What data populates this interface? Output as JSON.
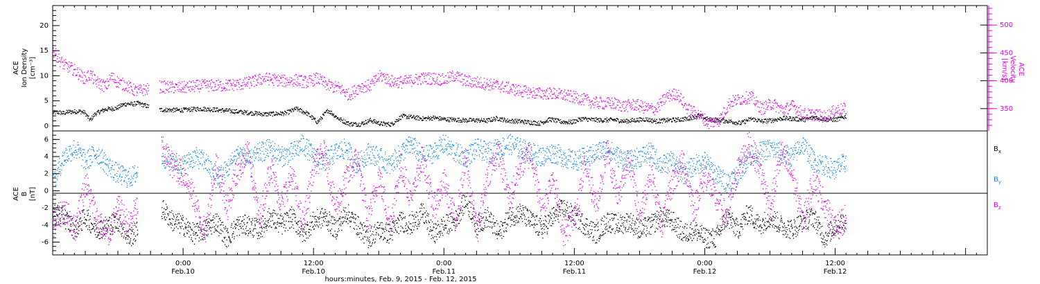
{
  "chart_data": [
    {
      "type": "scatter",
      "panel": "top",
      "left_axis_label": [
        "ACE",
        "Ion Density",
        "[cm⁻³]"
      ],
      "right_axis_label": [
        "ACE",
        "Velocity",
        "[km/s]"
      ],
      "left_ylim": [
        -1,
        24
      ],
      "right_ylim": [
        310,
        535
      ],
      "left_ticks": [
        "0",
        "5",
        "10",
        "15",
        "20"
      ],
      "right_ticks": [
        "350",
        "400",
        "450",
        "500"
      ],
      "series": [
        {
          "role": "ion-density",
          "color": "#000000",
          "x": [
            0,
            1,
            2,
            3,
            4,
            5,
            6,
            7,
            8,
            9,
            10,
            11,
            12,
            13,
            14,
            15,
            16,
            20,
            24,
            28,
            32,
            36,
            40,
            44,
            46,
            48,
            50,
            52,
            54,
            56,
            58,
            60,
            62,
            64,
            66,
            68,
            70,
            72,
            74,
            76,
            78,
            80,
            82,
            84,
            86,
            88,
            90,
            92,
            94,
            96,
            98,
            100,
            102,
            104,
            106,
            108,
            110,
            112,
            114,
            116,
            118,
            120,
            122,
            124,
            126,
            128,
            130,
            132,
            134,
            136,
            138,
            140,
            142,
            144,
            146,
            148,
            150
          ],
          "y": [
            2.7,
            2.8,
            2.6,
            2.9,
            2.9,
            3.0,
            2.7,
            1.2,
            2.5,
            3.0,
            3.4,
            3.5,
            3.6,
            4.2,
            4.5,
            4.4,
            4.6,
            3.3,
            3.2,
            3.5,
            3.2,
            2.8,
            2.4,
            2.6,
            3.5,
            2.6,
            0.8,
            3.2,
            1.5,
            0.5,
            0.4,
            1.2,
            0.5,
            0.4,
            2.0,
            1.8,
            1.5,
            1.7,
            1.4,
            1.3,
            1.2,
            1.2,
            1.1,
            1.6,
            1.1,
            1.0,
            0.8,
            0.6,
            1.4,
            0.9,
            0.8,
            1.5,
            1.3,
            1.2,
            1.3,
            1.0,
            1.2,
            1.4,
            1.0,
            1.2,
            1.3,
            1.5,
            2.2,
            1.3,
            1.2,
            1.0,
            0.6,
            1.5,
            1.0,
            1.2,
            1.6,
            1.5,
            1.3,
            1.8,
            1.4,
            1.3,
            2.0
          ]
        },
        {
          "role": "velocity",
          "color": "#e000e0",
          "x": [
            0,
            1,
            2,
            3,
            4,
            5,
            6,
            7,
            8,
            9,
            10,
            11,
            12,
            13,
            14,
            15,
            16,
            20,
            24,
            28,
            32,
            36,
            40,
            44,
            46,
            48,
            50,
            52,
            54,
            56,
            58,
            60,
            62,
            64,
            66,
            68,
            70,
            72,
            74,
            76,
            78,
            80,
            82,
            84,
            86,
            88,
            90,
            92,
            94,
            96,
            98,
            100,
            102,
            104,
            106,
            108,
            110,
            112,
            114,
            116,
            118,
            120,
            122,
            124,
            126,
            128,
            130,
            132,
            134,
            136,
            138,
            140,
            142,
            144,
            146,
            148,
            150
          ],
          "y": [
            455,
            440,
            430,
            425,
            420,
            412,
            405,
            412,
            400,
            395,
            390,
            408,
            400,
            395,
            392,
            385,
            382,
            390,
            388,
            392,
            392,
            395,
            405,
            400,
            402,
            398,
            405,
            392,
            388,
            375,
            390,
            392,
            410,
            400,
            398,
            402,
            405,
            405,
            402,
            410,
            400,
            398,
            395,
            392,
            388,
            383,
            380,
            378,
            378,
            376,
            372,
            368,
            362,
            360,
            360,
            355,
            358,
            352,
            350,
            372,
            378,
            350,
            340,
            325,
            330,
            362,
            368,
            372,
            350,
            360,
            348,
            356,
            340,
            340,
            336,
            348,
            350
          ]
        }
      ]
    },
    {
      "type": "scatter",
      "panel": "bottom",
      "left_axis_label": [
        "ACE",
        "B",
        "[nT]"
      ],
      "ylim": [
        -7.5,
        7
      ],
      "y_ticks": [
        "-6",
        "-4",
        "-2",
        "0",
        "2",
        "4",
        "6"
      ],
      "x_ticks": [
        {
          "time": "0:00",
          "date": "Feb.10",
          "hour": 24
        },
        {
          "time": "12:00",
          "date": "Feb.10",
          "hour": 36
        },
        {
          "time": "0:00",
          "date": "Feb.11",
          "hour": 48
        },
        {
          "time": "12:00",
          "date": "Feb.11",
          "hour": 60
        },
        {
          "time": "0:00",
          "date": "Feb.12",
          "hour": 72
        },
        {
          "time": "12:00",
          "date": "Feb.12",
          "hour": 84
        }
      ],
      "xlabel": "hours:minutes, Feb.  9, 2015 - Feb. 12, 2015",
      "xlim_hours": [
        12,
        98
      ],
      "series": [
        {
          "name": "Bx",
          "color": "#000000",
          "x": [
            12,
            13,
            14,
            15,
            16,
            17,
            18,
            19,
            22,
            23,
            24,
            25,
            26,
            27,
            28,
            29,
            30,
            31,
            32,
            33,
            34,
            35,
            36,
            37,
            38,
            39,
            40,
            41,
            42,
            43,
            44,
            45,
            46,
            47,
            48,
            49,
            50,
            51,
            52,
            53,
            54,
            55,
            56,
            57,
            58,
            59,
            60,
            61,
            62,
            63,
            64,
            65,
            66,
            67,
            68,
            69,
            70,
            71,
            72,
            73,
            74,
            75,
            76,
            77,
            78,
            79,
            80,
            81,
            82,
            83,
            84,
            85
          ],
          "y": [
            -2.5,
            -3.0,
            -4.5,
            -3.0,
            -4.5,
            -4.0,
            -3.5,
            -5.5,
            -2.0,
            -3.5,
            -4.0,
            -5.0,
            -4.5,
            -3.5,
            -5.5,
            -4.0,
            -4.0,
            -4.5,
            -3.0,
            -4.0,
            -3.0,
            -5.0,
            -3.5,
            -3.0,
            -4.5,
            -2.5,
            -4.0,
            -5.5,
            -4.5,
            -5.0,
            -3.5,
            -4.0,
            -2.5,
            -5.0,
            -4.0,
            -3.5,
            -1.0,
            -4.0,
            -3.0,
            -5.0,
            -3.0,
            -2.5,
            -3.5,
            -4.5,
            -3.0,
            -2.0,
            -3.0,
            -4.0,
            -5.0,
            -3.5,
            -4.0,
            -3.5,
            -4.5,
            -4.0,
            -3.0,
            -3.5,
            -5.0,
            -4.5,
            -5.5,
            -5.5,
            -3.0,
            -4.5,
            -2.5,
            -4.0,
            -3.0,
            -4.0,
            -4.5,
            -3.5,
            -3.0,
            -5.5,
            -4.0,
            -3.5
          ]
        },
        {
          "name": "By",
          "color": "#1e88e0",
          "x": [
            12,
            13,
            14,
            15,
            16,
            17,
            18,
            19,
            22,
            23,
            24,
            25,
            26,
            27,
            28,
            29,
            30,
            31,
            32,
            33,
            34,
            35,
            36,
            37,
            38,
            39,
            40,
            41,
            42,
            43,
            44,
            45,
            46,
            47,
            48,
            49,
            50,
            51,
            52,
            53,
            54,
            55,
            56,
            57,
            58,
            59,
            60,
            61,
            62,
            63,
            64,
            65,
            66,
            67,
            68,
            69,
            70,
            71,
            72,
            73,
            74,
            75,
            76,
            77,
            78,
            79,
            80,
            81,
            82,
            83,
            84,
            85
          ],
          "y": [
            1.0,
            4.0,
            5.0,
            3.5,
            4.5,
            3.0,
            2.0,
            1.5,
            4.0,
            3.5,
            3.0,
            4.0,
            3.5,
            1.5,
            2.5,
            4.5,
            3.5,
            4.5,
            5.0,
            4.0,
            4.5,
            5.5,
            4.0,
            3.5,
            4.5,
            5.0,
            3.0,
            4.5,
            4.0,
            3.0,
            4.5,
            5.5,
            4.0,
            4.5,
            5.5,
            4.5,
            4.0,
            5.0,
            4.5,
            5.0,
            5.5,
            5.0,
            4.5,
            4.0,
            4.5,
            4.0,
            3.5,
            4.0,
            4.5,
            5.0,
            4.0,
            3.5,
            4.0,
            4.5,
            3.0,
            3.5,
            2.0,
            3.0,
            3.5,
            2.0,
            1.0,
            2.0,
            4.0,
            4.5,
            5.0,
            4.5,
            4.0,
            5.5,
            3.5,
            3.0,
            2.5,
            3.5
          ]
        },
        {
          "name": "Bz",
          "color": "#e000e0",
          "x": [
            12,
            13,
            14,
            15,
            16,
            17,
            18,
            19,
            22,
            23,
            24,
            25,
            26,
            27,
            28,
            29,
            30,
            31,
            32,
            33,
            34,
            35,
            36,
            37,
            38,
            39,
            40,
            41,
            42,
            43,
            44,
            45,
            46,
            47,
            48,
            49,
            50,
            51,
            52,
            53,
            54,
            55,
            56,
            57,
            58,
            59,
            60,
            61,
            62,
            63,
            64,
            65,
            66,
            67,
            68,
            69,
            70,
            71,
            72,
            73,
            74,
            75,
            76,
            77,
            78,
            79,
            80,
            81,
            82,
            83,
            84,
            85
          ],
          "y": [
            -4.0,
            -2.0,
            -4.5,
            1.0,
            -3.0,
            -5.5,
            -2.0,
            -4.0,
            5.0,
            3.0,
            2.0,
            -1.0,
            -5.0,
            3.5,
            -2.0,
            2.5,
            4.5,
            -3.5,
            3.0,
            -1.5,
            2.0,
            -4.0,
            3.0,
            4.5,
            -2.0,
            1.5,
            4.0,
            -3.5,
            2.0,
            -4.0,
            3.0,
            -1.0,
            4.0,
            -2.0,
            1.0,
            -3.5,
            3.5,
            -5.0,
            2.0,
            4.5,
            -1.0,
            3.0,
            4.5,
            -2.5,
            2.0,
            -5.0,
            -3.0,
            3.5,
            -2.0,
            5.0,
            -1.0,
            4.0,
            -3.0,
            2.5,
            -4.0,
            1.0,
            3.5,
            -2.0,
            2.0,
            -1.0,
            -3.0,
            2.5,
            5.5,
            3.0,
            -2.0,
            4.5,
            2.0,
            -3.5,
            1.5,
            -1.5,
            -4.5,
            -3.0
          ]
        }
      ]
    }
  ],
  "legend": {
    "bx": "B",
    "bx_sub": "x",
    "by": "B",
    "by_sub": "y",
    "bz": "B",
    "bz_sub": "z"
  }
}
